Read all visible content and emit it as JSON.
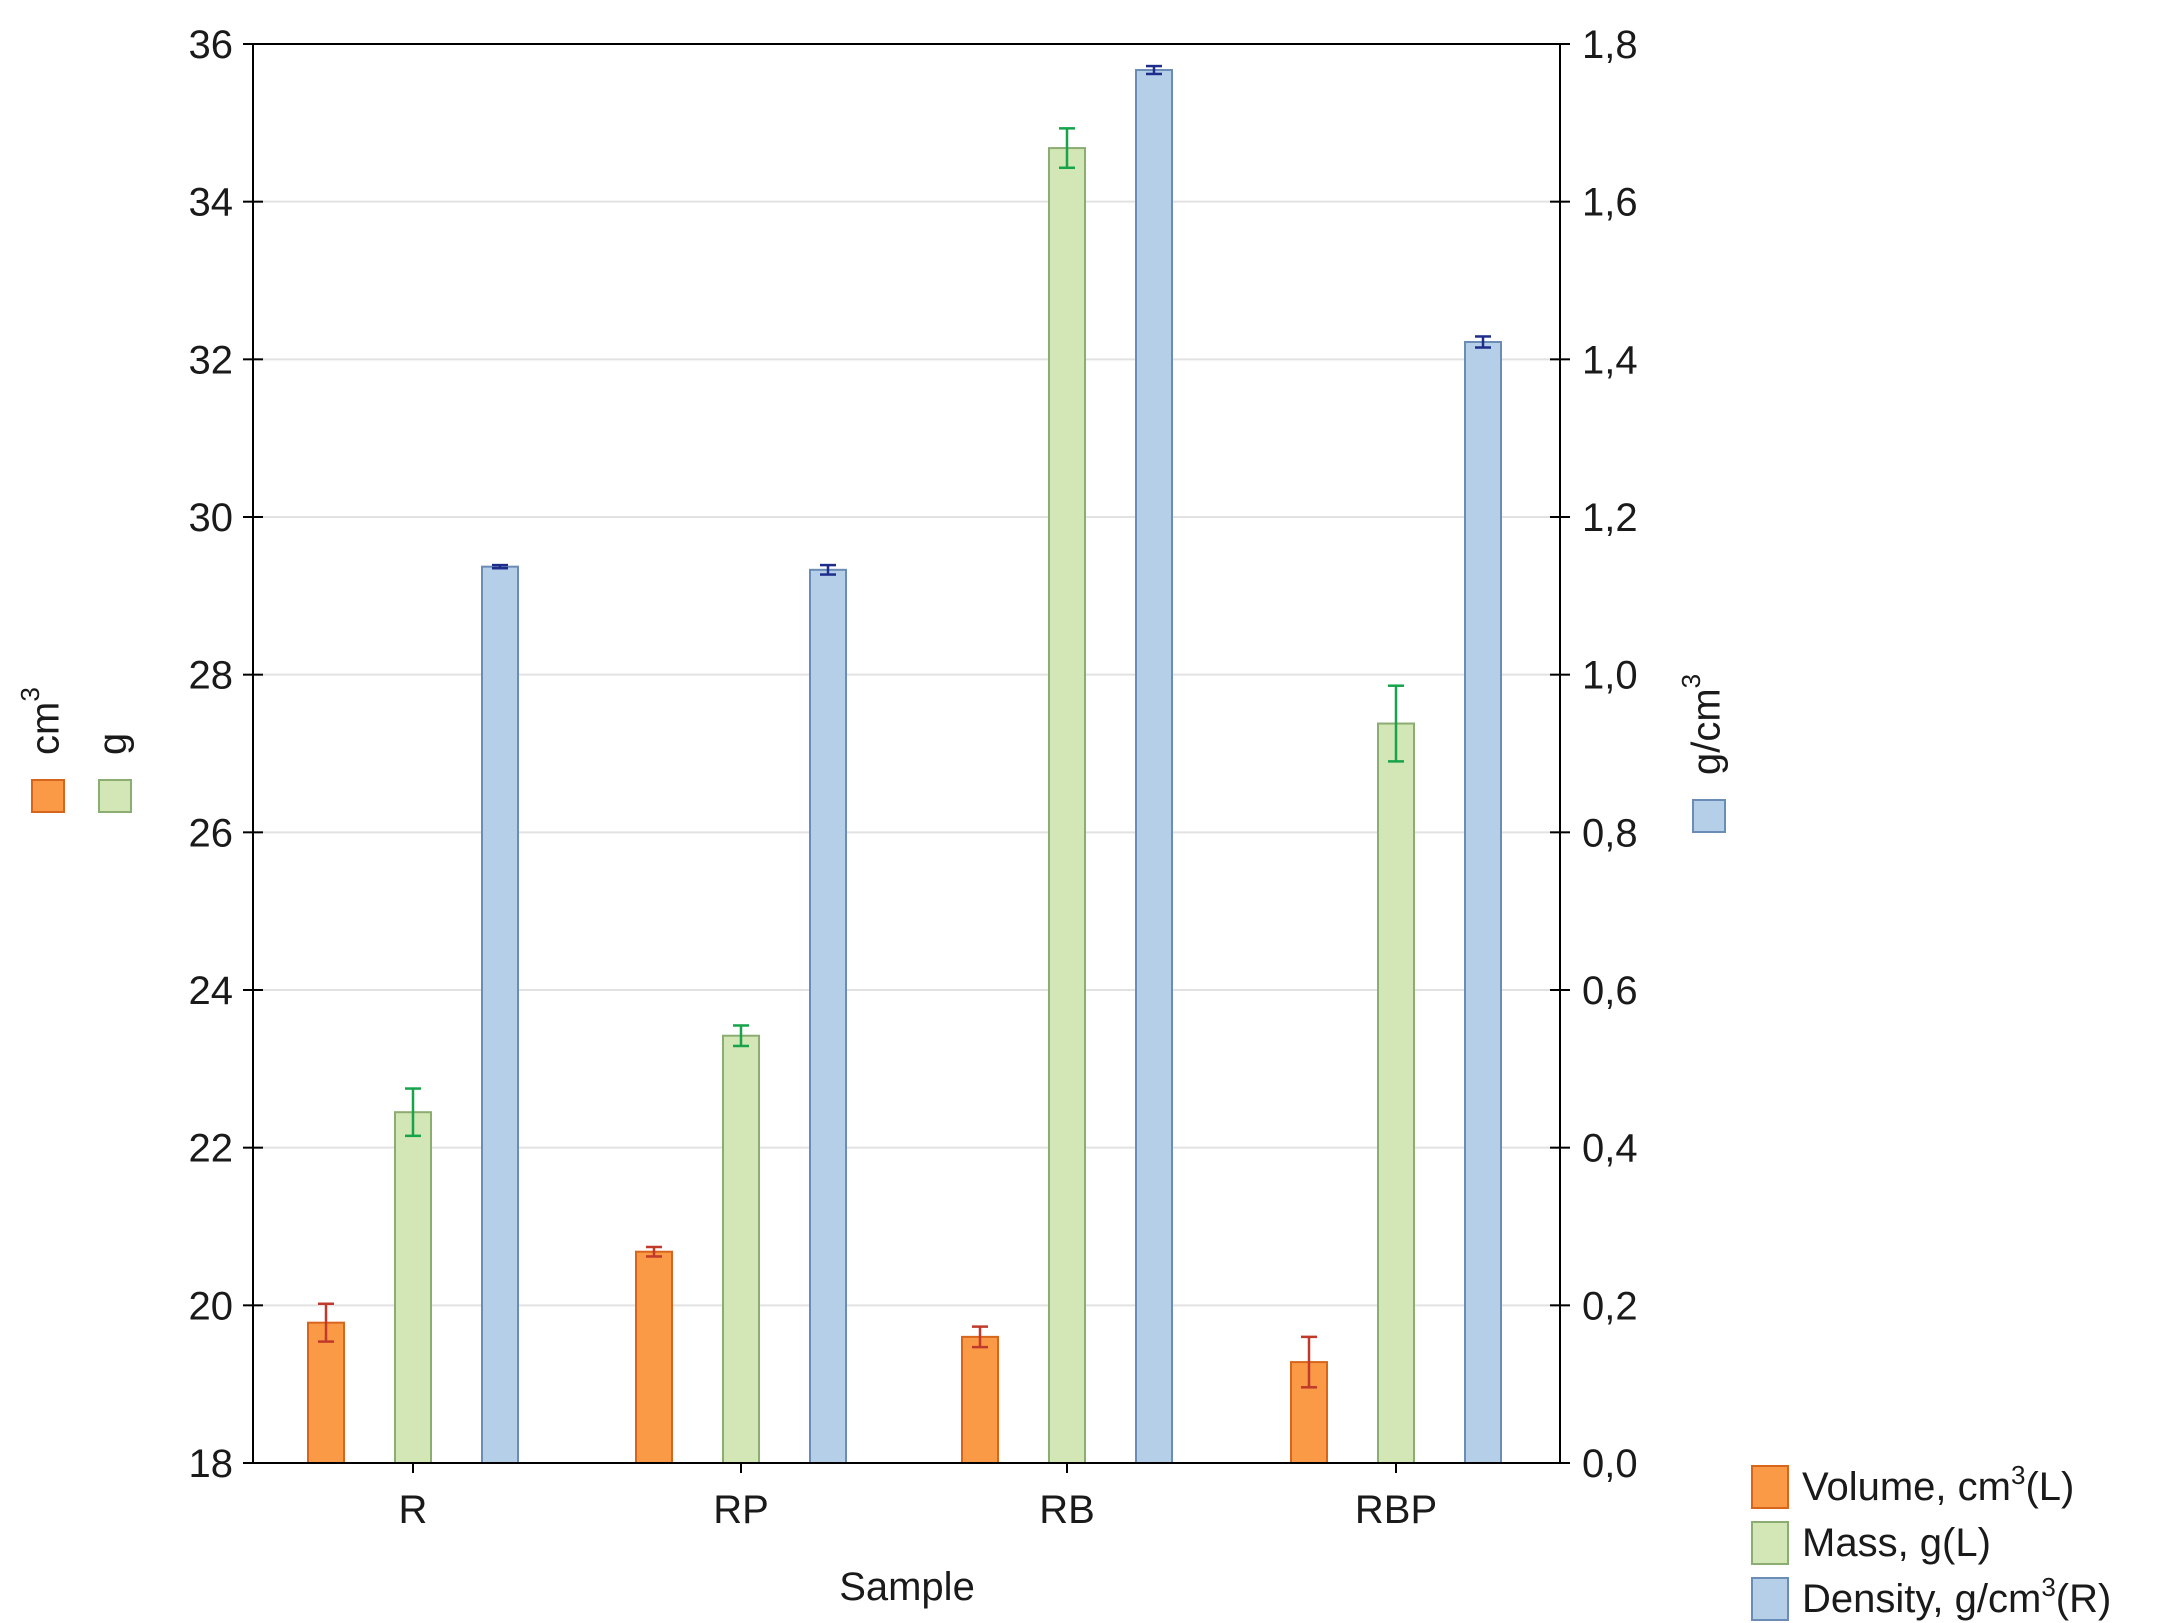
{
  "chart_data": {
    "type": "bar",
    "xlabel": "Sample",
    "categories": [
      "R",
      "RP",
      "RB",
      "RBP"
    ],
    "left_axis": {
      "ylim": [
        18,
        36
      ],
      "ticks": [
        18,
        20,
        22,
        24,
        26,
        28,
        30,
        32,
        34,
        36
      ],
      "tick_labels": [
        "18",
        "20",
        "22",
        "24",
        "26",
        "28",
        "30",
        "32",
        "34",
        "36"
      ],
      "legend": [
        {
          "key": "volume",
          "label": "cm",
          "sup": "3"
        },
        {
          "key": "mass",
          "label": "g",
          "sup": ""
        }
      ]
    },
    "right_axis": {
      "ylim": [
        0,
        1.8
      ],
      "ticks": [
        0,
        0.2,
        0.4,
        0.6,
        0.8,
        1.0,
        1.2,
        1.4,
        1.6,
        1.8
      ],
      "tick_labels": [
        "0,0",
        "0,2",
        "0,4",
        "0,6",
        "0,8",
        "1,0",
        "1,2",
        "1,4",
        "1,6",
        "1,8"
      ],
      "legend": [
        {
          "key": "density",
          "label": "g/cm",
          "sup": "3"
        }
      ]
    },
    "series": [
      {
        "key": "volume",
        "name": "Volume, cm3(L)",
        "legend_parts": {
          "pre": "Volume, cm",
          "sup": "3",
          "post": "(L)"
        },
        "axis": "left",
        "color": "#fb9a46",
        "border": "#d7651c",
        "error_color": "#c0392b",
        "values": [
          19.78,
          20.68,
          19.6,
          19.28
        ],
        "errors": [
          0.24,
          0.06,
          0.13,
          0.32
        ]
      },
      {
        "key": "mass",
        "name": "Mass, g(L)",
        "legend_parts": {
          "pre": "Mass, g(L)",
          "sup": "",
          "post": ""
        },
        "axis": "left",
        "color": "#d3e6b6",
        "border": "#8cad72",
        "error_color": "#16a34a",
        "values": [
          22.45,
          23.42,
          34.68,
          27.38
        ],
        "errors": [
          0.3,
          0.13,
          0.25,
          0.48
        ]
      },
      {
        "key": "density",
        "name": "Density, g/cm3(R)",
        "legend_parts": {
          "pre": "Density, g/cm",
          "sup": "3",
          "post": "(R)"
        },
        "axis": "right",
        "color": "#b6cfe8",
        "border": "#6a8cb5",
        "error_color": "#1e2d8c",
        "values": [
          1.137,
          1.133,
          1.767,
          1.422
        ],
        "errors": [
          0.002,
          0.006,
          0.005,
          0.007
        ]
      }
    ]
  }
}
